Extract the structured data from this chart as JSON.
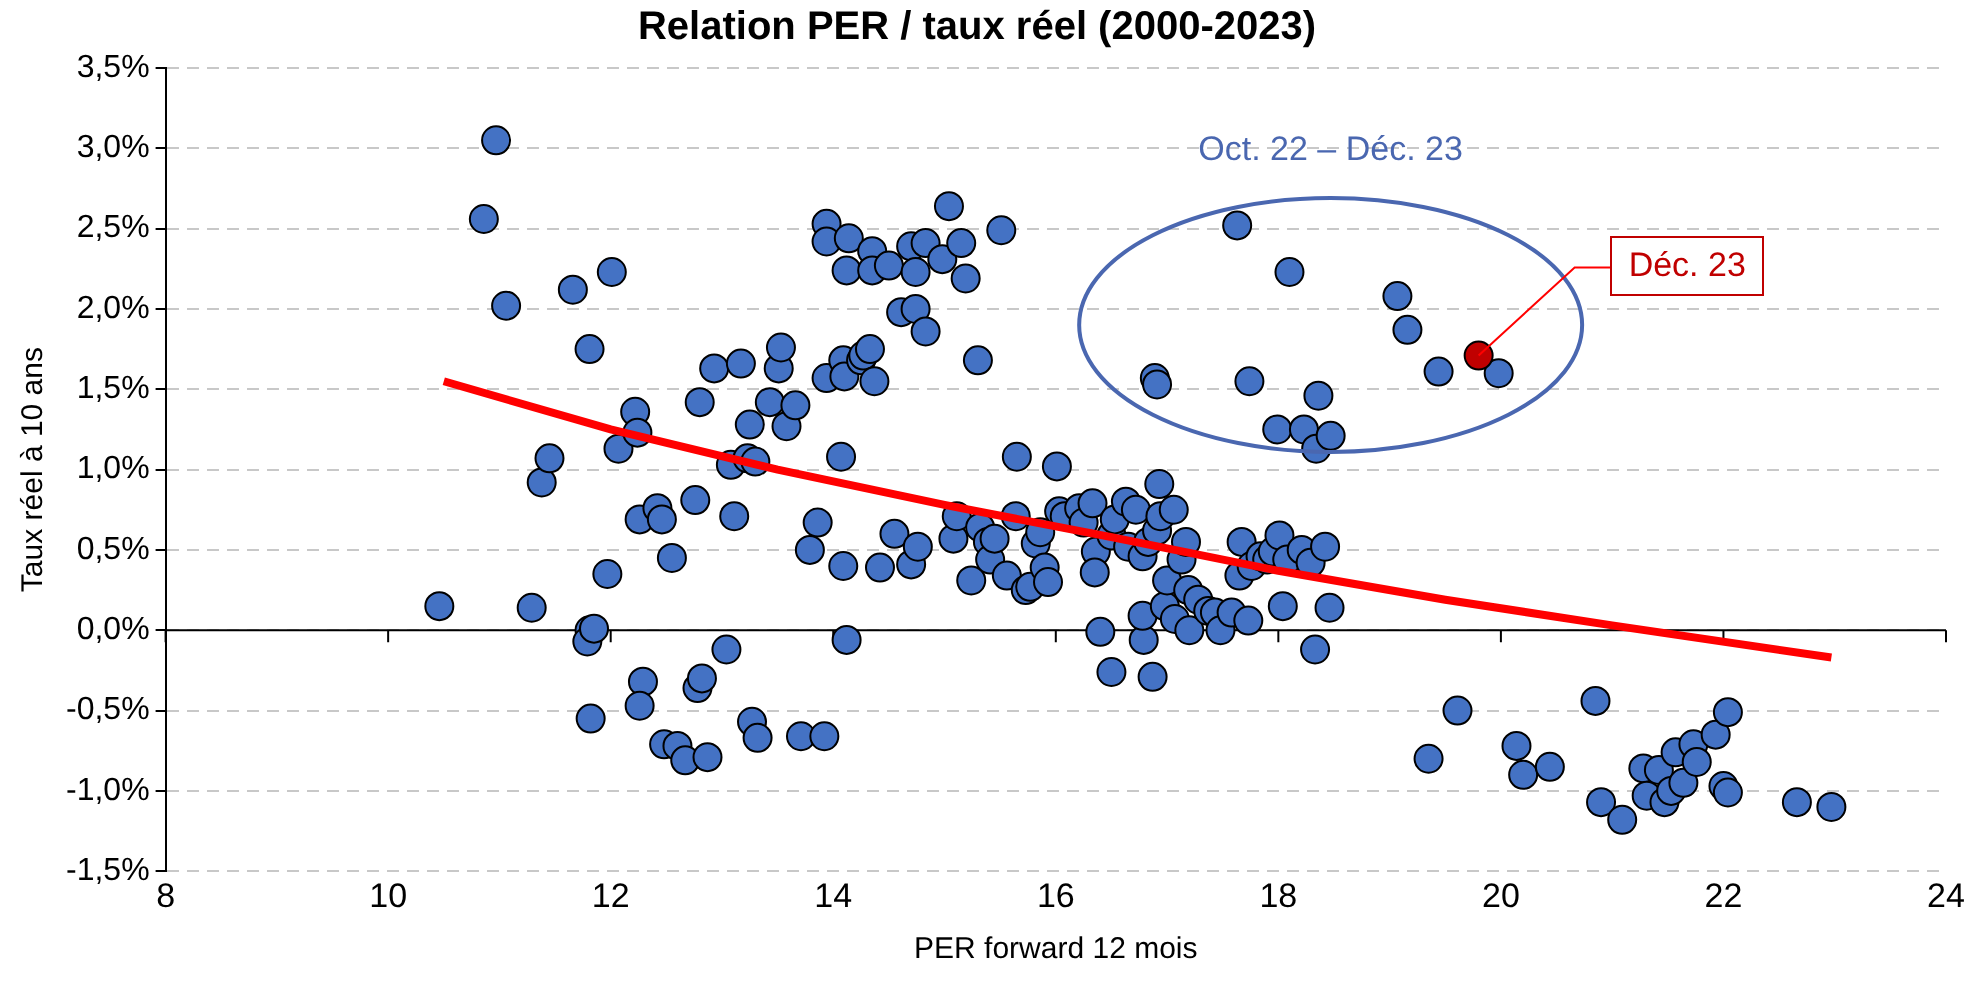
{
  "chart_data": {
    "type": "scatter",
    "title": "Relation PER / taux réel (2000-2023)",
    "xlabel": "PER forward 12 mois",
    "ylabel": "Taux réel à 10 ans",
    "xlim": [
      8,
      24
    ],
    "xticks": [
      8,
      10,
      12,
      14,
      16,
      18,
      20,
      22,
      24
    ],
    "ylim": [
      -1.5,
      3.5
    ],
    "yticks": [
      {
        "value": -1.5,
        "label": "-1,5%"
      },
      {
        "value": -1,
        "label": "-1,0%"
      },
      {
        "value": -0.5,
        "label": "-0,5%"
      },
      {
        "value": 0,
        "label": "0,0%"
      },
      {
        "value": 0.5,
        "label": "0,5%"
      },
      {
        "value": 1,
        "label": "1,0%"
      },
      {
        "value": 1.5,
        "label": "1,5%"
      },
      {
        "value": 2,
        "label": "2,0%"
      },
      {
        "value": 2.5,
        "label": "2,5%"
      },
      {
        "value": 3,
        "label": "3,0%"
      },
      {
        "value": 3.5,
        "label": "3,5%"
      }
    ],
    "grid": "y",
    "legend": false,
    "marker": "circle",
    "annotations": [
      "Oct. 22 – Déc. 23",
      {
        "text": "Déc. 23",
        "x": 19.8,
        "y": 1.71
      }
    ],
    "series": [
      {
        "color": "#4472c4",
        "x": [
          10.46,
          10.97,
          10.86,
          11.06,
          11.66,
          11.81,
          12.01,
          11.29,
          11.38,
          11.45,
          11.81,
          11.79,
          11.85,
          11.82,
          11.97,
          12.07,
          12.22,
          12.24,
          12.26,
          12.29,
          12.26,
          12.42,
          12.46,
          12.48,
          12.55,
          12.6,
          12.67,
          12.78,
          12.82,
          12.76,
          12.8,
          12.87,
          12.93,
          13.04,
          13.08,
          13.11,
          13.17,
          13.23,
          13.25,
          13.3,
          13.27,
          13.32,
          13.43,
          13.51,
          13.53,
          13.58,
          13.66,
          13.71,
          13.79,
          13.86,
          13.92,
          13.94,
          13.94,
          13.94,
          14.07,
          14.09,
          14.1,
          14.09,
          14.12,
          14.14,
          14.12,
          14.25,
          14.27,
          14.33,
          14.35,
          14.35,
          14.37,
          14.42,
          14.5,
          14.55,
          14.61,
          14.7,
          14.7,
          14.74,
          14.74,
          14.76,
          14.83,
          14.83,
          14.98,
          15.04,
          15.08,
          15.11,
          15.15,
          15.19,
          15.24,
          15.3,
          15.32,
          15.39,
          15.41,
          15.45,
          15.51,
          15.56,
          15.64,
          15.65,
          15.73,
          15.77,
          15.82,
          15.86,
          15.9,
          15.93,
          16.01,
          16.03,
          16.08,
          16.21,
          16.25,
          16.33,
          16.36,
          16.35,
          16.4,
          16.5,
          16.5,
          16.53,
          16.63,
          16.65,
          16.72,
          16.78,
          16.79,
          16.78,
          16.83,
          16.87,
          16.91,
          16.93,
          16.94,
          16.98,
          17.0,
          17.06,
          17.07,
          17.13,
          17.17,
          17.19,
          17.2,
          17.28,
          17.37,
          17.43,
          17.48,
          17.58,
          17.65,
          17.67,
          17.73,
          17.76,
          17.84,
          17.9,
          17.95,
          18.01,
          18.04,
          18.08,
          18.21,
          18.29,
          18.33,
          18.42,
          18.46,
          16.89,
          16.91,
          17.63,
          17.74,
          18.1,
          17.99,
          18.23,
          18.36,
          18.34,
          18.47,
          19.07,
          19.16,
          19.44,
          19.98,
          19.35,
          19.61,
          20.14,
          20.2,
          20.44,
          20.85,
          20.9,
          21.09,
          21.28,
          21.31,
          21.42,
          21.47,
          21.53,
          21.57,
          21.64,
          21.73,
          21.76,
          21.93,
          22.0,
          22.04,
          22.04,
          22.66,
          22.97
        ],
        "values": [
          0.15,
          3.05,
          2.56,
          2.02,
          2.12,
          1.75,
          2.23,
          0.14,
          0.92,
          1.07,
          0.0,
          -0.07,
          0.01,
          -0.55,
          0.35,
          1.13,
          1.36,
          1.23,
          0.69,
          -0.32,
          -0.47,
          0.76,
          0.69,
          -0.71,
          0.45,
          -0.72,
          -0.81,
          -0.36,
          -0.3,
          0.81,
          1.42,
          -0.79,
          1.63,
          -0.12,
          1.03,
          0.71,
          1.66,
          1.07,
          1.28,
          1.05,
          -0.57,
          -0.67,
          1.42,
          1.63,
          1.76,
          1.27,
          1.4,
          -0.66,
          0.5,
          0.67,
          -0.66,
          2.53,
          2.42,
          1.57,
          1.08,
          1.68,
          1.58,
          0.4,
          -0.06,
          2.44,
          2.24,
          1.68,
          1.71,
          1.75,
          2.36,
          2.24,
          1.55,
          0.39,
          2.27,
          0.6,
          1.98,
          0.41,
          2.39,
          2.23,
          2.0,
          0.52,
          2.41,
          1.86,
          2.31,
          2.64,
          0.57,
          0.71,
          2.41,
          2.19,
          0.31,
          1.68,
          0.64,
          0.55,
          0.44,
          0.57,
          2.49,
          0.34,
          0.71,
          1.08,
          0.25,
          0.27,
          0.54,
          0.61,
          0.39,
          0.3,
          1.02,
          0.74,
          0.71,
          0.76,
          0.67,
          0.79,
          0.49,
          0.36,
          -0.01,
          -0.26,
          0.59,
          0.69,
          0.8,
          0.52,
          0.75,
          0.46,
          -0.06,
          0.09,
          0.55,
          -0.29,
          0.62,
          0.91,
          0.71,
          0.15,
          0.31,
          0.75,
          0.07,
          0.44,
          0.55,
          0.25,
          0.0,
          0.19,
          0.12,
          0.11,
          0.0,
          0.11,
          0.34,
          0.55,
          0.06,
          0.4,
          0.46,
          0.44,
          0.49,
          0.59,
          0.15,
          0.44,
          0.5,
          0.42,
          -0.12,
          0.52,
          0.14,
          1.57,
          1.53,
          2.52,
          1.55,
          2.23,
          1.25,
          1.25,
          1.46,
          1.13,
          1.21,
          2.08,
          1.87,
          1.61,
          1.6,
          -0.8,
          -0.5,
          -0.72,
          -0.9,
          -0.85,
          -0.44,
          -1.07,
          -1.18,
          -0.86,
          -1.03,
          -0.87,
          -1.07,
          -1.0,
          -0.76,
          -0.95,
          -0.71,
          -0.82,
          -0.65,
          -0.97,
          -0.51,
          -1.01,
          -1.07,
          -1.1
        ]
      },
      {
        "color": "#c00000",
        "x": [
          19.8
        ],
        "values": [
          1.71
        ]
      },
      {
        "type": "line",
        "color": "#ff0000",
        "marker": "none",
        "x": [
          10.5,
          12,
          13.5,
          15,
          16.5,
          18,
          19.5,
          21,
          22.97
        ],
        "values": [
          1.55,
          1.25,
          1.0,
          0.78,
          0.58,
          0.37,
          0.19,
          0.03,
          -0.17
        ]
      }
    ]
  }
}
